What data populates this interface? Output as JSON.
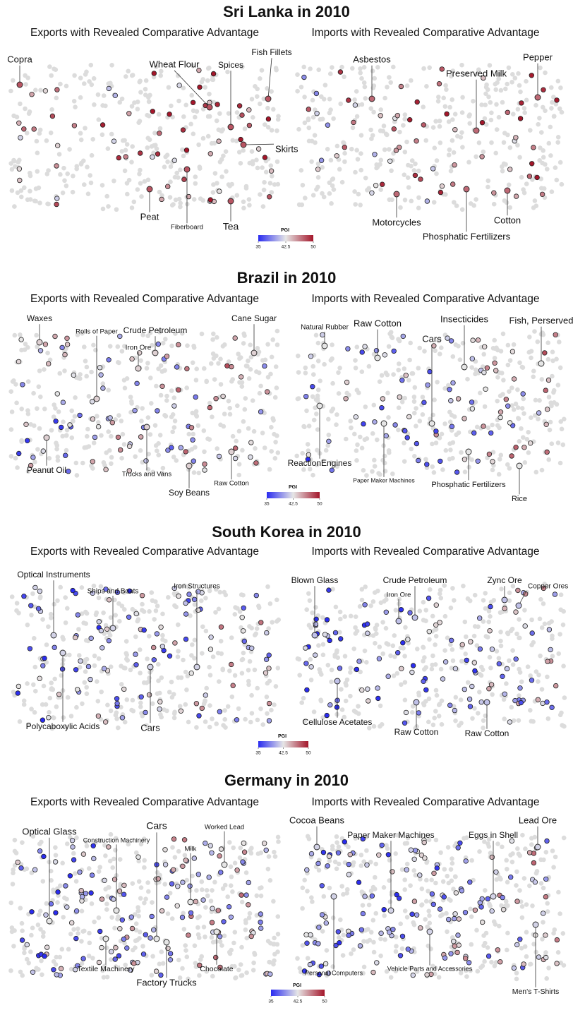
{
  "sections": [
    {
      "title": "Sri Lanka in 2010",
      "exports": {
        "subtitle": "Exports with Revealed Comparative Advantage",
        "labels": [
          "Copra",
          "Wheat Flour",
          "Spices",
          "Fish Fillets",
          "Skirts",
          "Peat",
          "Fiberboard",
          "Tea"
        ]
      },
      "imports": {
        "subtitle": "Imports with Revealed Comparative Advantage",
        "labels": [
          "Asbestos",
          "Preserved Milk",
          "Pepper",
          "Motorcycles",
          "Phosphatic Fertilizers",
          "Cotton"
        ]
      },
      "colorbar": {
        "title": "PGI",
        "ticks": [
          35,
          42.5,
          50
        ]
      }
    },
    {
      "title": "Brazil in 2010",
      "exports": {
        "subtitle": "Exports with Revealed Comparative Advantage",
        "labels": [
          "Waxes",
          "Rolls of Paper",
          "Crude Petroleum",
          "Iron Ore",
          "Cane Sugar",
          "Peanut Oil",
          "Trucks and Vans",
          "Soy Beans",
          "Raw Cotton"
        ]
      },
      "imports": {
        "subtitle": "Imports with Revealed Comparative Advantage",
        "labels": [
          "Natural Rubber",
          "Raw Cotton",
          "Cars",
          "Insecticides",
          "Fish, Perserved",
          "ReactionEngines",
          "Paper Maker Machines",
          "Phosphatic Fertilizers",
          "Rice"
        ]
      },
      "colorbar": {
        "title": "PGI",
        "ticks": [
          35,
          42.5,
          50
        ]
      }
    },
    {
      "title": "South Korea in 2010",
      "exports": {
        "subtitle": "Exports with Revealed Comparative Advantage",
        "labels": [
          "Optical Instruments",
          "Ships and Boats",
          "Iron Structures",
          "Polycaboxylic Acids",
          "Cars"
        ]
      },
      "imports": {
        "subtitle": "Imports with Revealed Comparative Advantage",
        "labels": [
          "Blown Glass",
          "Crude Petroleum",
          "Iron Ore",
          "Zync Ore",
          "Copper Ores",
          "Cellulose Acetates",
          "Raw Cotton",
          "Raw Cotton"
        ]
      },
      "colorbar": {
        "title": "PGI",
        "ticks": [
          35,
          42.5,
          50
        ]
      }
    },
    {
      "title": "Germany in 2010",
      "exports": {
        "subtitle": "Exports with Revealed Comparative Advantage",
        "labels": [
          "Optical Glass",
          "Construction Machinery",
          "Cars",
          "Milk",
          "Worked Lead",
          "Textile Machinery",
          "Factory Trucks",
          "Chocolate"
        ]
      },
      "imports": {
        "subtitle": "Imports with Revealed Comparative Advantage",
        "labels": [
          "Cocoa Beans",
          "Paper Maker Machines",
          "Eggs in Shell",
          "Lead Ore",
          "Personal Computers",
          "Vehicle Parts and Accessories",
          "Men's T-Shirts"
        ]
      },
      "colorbar": {
        "title": "PGI",
        "ticks": [
          35,
          42.5,
          50
        ]
      }
    }
  ]
}
